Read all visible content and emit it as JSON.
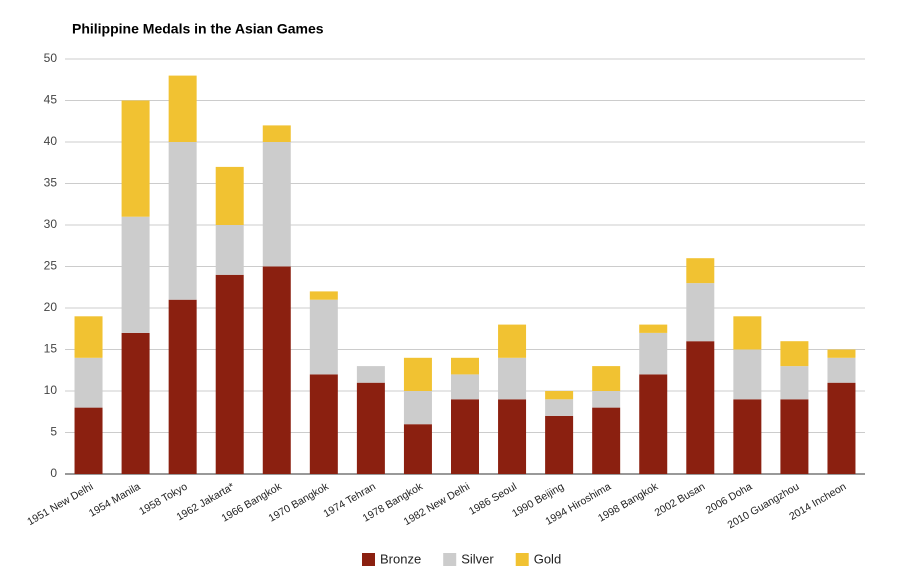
{
  "chart_data": {
    "type": "stacked_bar",
    "title": "Philippine Medals in the Asian Games",
    "categories": [
      "1951 New Delhi",
      "1954 Manila",
      "1958 Tokyo",
      "1962 Jakarta*",
      "1966 Bangkok",
      "1970 Bangkok",
      "1974 Tehran",
      "1978 Bangkok",
      "1982 New Delhi",
      "1986 Seoul",
      "1990 Beijing",
      "1994 Hiroshima",
      "1998 Bangkok",
      "2002 Busan",
      "2006 Doha",
      "2010 Guangzhou",
      "2014 Incheon"
    ],
    "series": [
      {
        "name": "Bronze",
        "color": "#8b2010",
        "values": [
          8,
          17,
          21,
          24,
          25,
          12,
          11,
          6,
          9,
          9,
          7,
          8,
          12,
          16,
          9,
          9,
          11
        ]
      },
      {
        "name": "Silver",
        "color": "#cccccc",
        "values": [
          6,
          14,
          19,
          6,
          15,
          9,
          2,
          4,
          3,
          5,
          2,
          2,
          5,
          7,
          6,
          4,
          3
        ]
      },
      {
        "name": "Gold",
        "color": "#f1c232",
        "values": [
          5,
          14,
          8,
          7,
          2,
          1,
          0,
          4,
          2,
          4,
          1,
          3,
          1,
          3,
          4,
          3,
          1
        ]
      }
    ],
    "ylim": [
      0,
      50
    ],
    "yticks": [
      0,
      5,
      10,
      15,
      20,
      25,
      30,
      35,
      40,
      45,
      50
    ],
    "grid": true,
    "legend": "bottom"
  }
}
